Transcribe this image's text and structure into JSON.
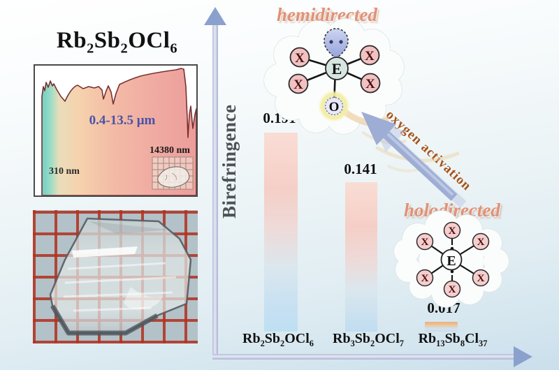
{
  "left_panel": {
    "title_formula": [
      [
        "Rb",
        "2"
      ],
      [
        "Sb",
        "2"
      ],
      [
        "OCl",
        "6"
      ]
    ],
    "spectrum": {
      "range_label": "0.4-13.5 μm",
      "uv_edge_label": "310 nm",
      "ir_edge_label": "14380 nm"
    }
  },
  "chart_data": {
    "type": "bar",
    "title": "",
    "xlabel": "",
    "ylabel": "Birefringence",
    "categories": [
      "Rb2Sb2OCl6",
      "Rb3Sb2OCl7",
      "Rb13Sb8Cl37"
    ],
    "categories_rich": {
      "c1": [
        [
          "Rb",
          "2"
        ],
        [
          "Sb",
          "2"
        ],
        [
          "OCl",
          "6"
        ]
      ],
      "c2": [
        [
          "Rb",
          "3"
        ],
        [
          "Sb",
          "2"
        ],
        [
          "OCl",
          "7"
        ]
      ],
      "c3": [
        [
          "Rb",
          "13"
        ],
        [
          "Sb",
          "8"
        ],
        [
          "Cl",
          "37"
        ]
      ]
    },
    "values": [
      0.191,
      0.141,
      0.017
    ],
    "ylim": [
      0,
      0.22
    ],
    "grid": false,
    "legend": "none",
    "annotations": [
      "hemidirected",
      "holodirected",
      "oxygen activation"
    ]
  },
  "annotations": {
    "hemidirected_label": "hemidirected",
    "holodirected_label": "holodirected",
    "oxygen_activation_label": "oxygen activation"
  },
  "molecules": {
    "center_atom_label": "E",
    "ligand_label": "X",
    "oxygen_label": "O"
  },
  "colors": {
    "coordination_title": "#e09276",
    "oxygen_activation_text": "#a5531b",
    "range_text": "#4953a6",
    "axis": "#c2c9e1",
    "arrowhead": "#8ba1cd",
    "bar_top": "#f9ddd5",
    "bar_bottom": "#bedff2",
    "ligand_fill": "#f2c2c2",
    "grid_paper_line": "#b03422"
  }
}
